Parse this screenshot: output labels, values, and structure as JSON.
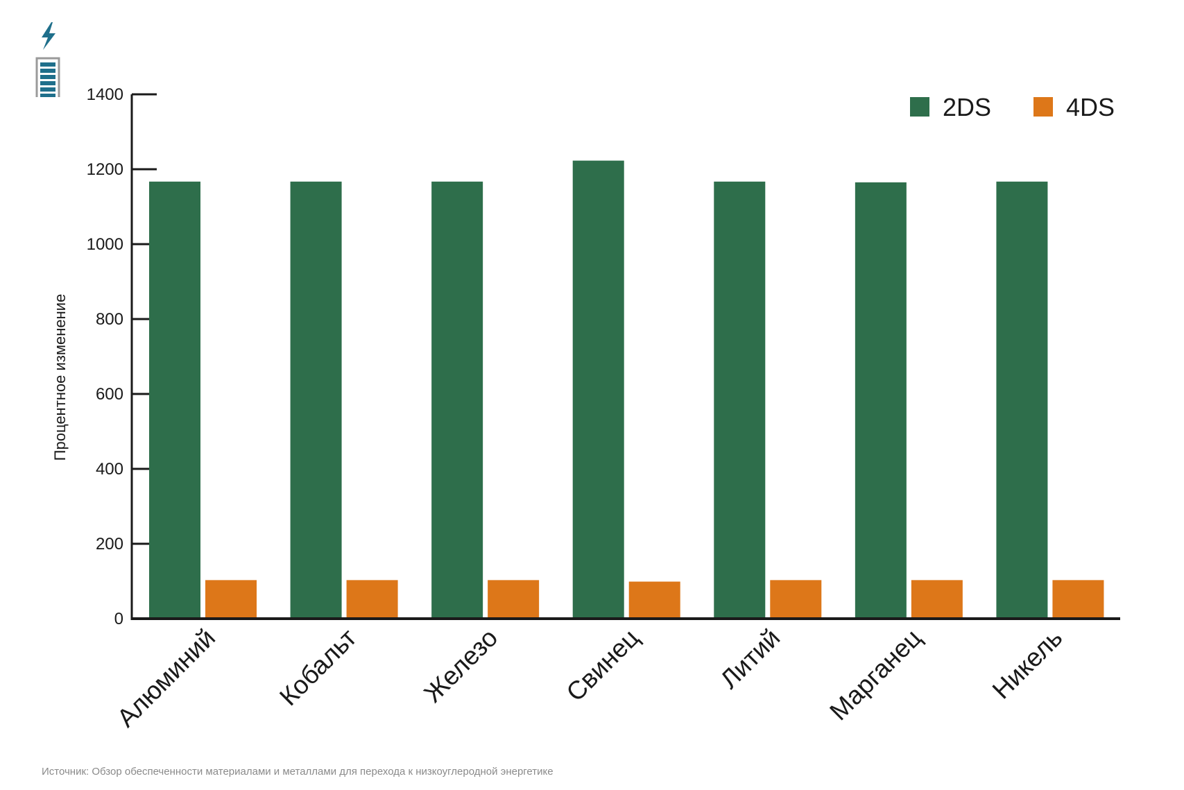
{
  "logo": {
    "icon": "battery-lightning-icon",
    "color": "#1f6f8b"
  },
  "source_text": "Источник: Обзор обеспеченности материалами и металлами для перехода к низкоуглеродной энергетике",
  "chart_data": {
    "type": "bar",
    "ylabel": "Процентное изменение",
    "ylim": [
      0,
      1400
    ],
    "yticks": [
      0,
      200,
      400,
      600,
      800,
      1000,
      1200,
      1400
    ],
    "categories": [
      "Алюминий",
      "Кобальт",
      "Железо",
      "Свинец",
      "Литий",
      "Марганец",
      "Никель"
    ],
    "series": [
      {
        "name": "2DS",
        "color": "#2e6e4b",
        "values": [
          1167,
          1167,
          1167,
          1223,
          1167,
          1165,
          1167
        ]
      },
      {
        "name": "4DS",
        "color": "#dd7719",
        "values": [
          103,
          103,
          103,
          99,
          103,
          103,
          103
        ]
      }
    ],
    "legend": "top-right",
    "grid": false
  }
}
